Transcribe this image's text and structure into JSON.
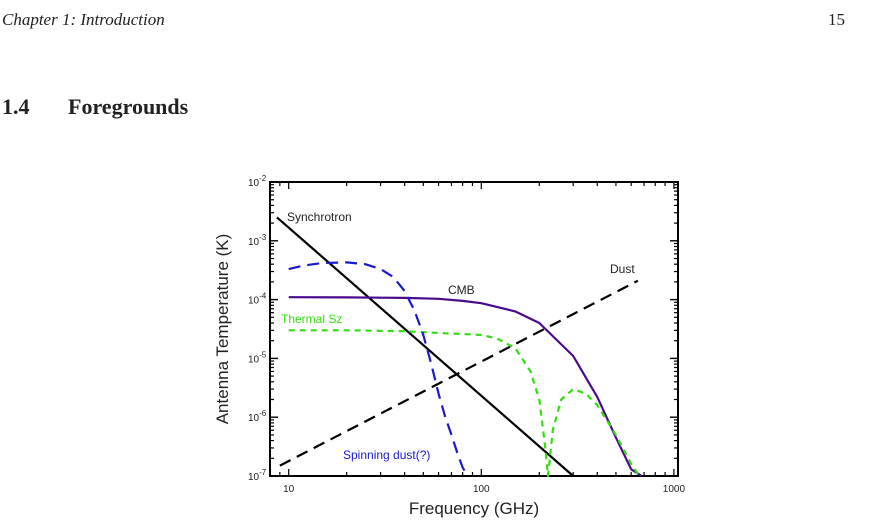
{
  "header": {
    "chapter_title": "Chapter 1: Introduction",
    "page_number": "15"
  },
  "section": {
    "number": "1.4",
    "title": "Foregrounds"
  },
  "chart_data": {
    "type": "line",
    "xlabel": "Frequency (GHz)",
    "ylabel": "Antenna Temperature (K)",
    "x_scale": "log",
    "y_scale": "log",
    "xlim": [
      8,
      1050
    ],
    "ylim": [
      1e-07,
      0.01
    ],
    "x_ticks": [
      {
        "value": 10,
        "label": "10"
      },
      {
        "value": 100,
        "label": "100"
      },
      {
        "value": 1000,
        "label": "1000"
      }
    ],
    "y_ticks": [
      {
        "value": 1e-07,
        "base": "10",
        "exp": "-7"
      },
      {
        "value": 1e-06,
        "base": "10",
        "exp": "-6"
      },
      {
        "value": 1e-05,
        "base": "10",
        "exp": "-5"
      },
      {
        "value": 0.0001,
        "base": "10",
        "exp": "-4"
      },
      {
        "value": 0.001,
        "base": "10",
        "exp": "-3"
      },
      {
        "value": 0.01,
        "base": "10",
        "exp": "-2"
      }
    ],
    "grid": false,
    "series": [
      {
        "name": "Synchrotron",
        "color": "#000000",
        "dash": "solid",
        "x": [
          8.7,
          300
        ],
        "y": [
          0.0025,
          1e-07
        ]
      },
      {
        "name": "CMB",
        "color": "#4b0a8c",
        "dash": "solid",
        "x": [
          10,
          20,
          40,
          60,
          80,
          100,
          150,
          200,
          300,
          400,
          500,
          600,
          680
        ],
        "y": [
          0.00011,
          0.000109,
          0.000107,
          0.000103,
          9.5e-05,
          8.7e-05,
          6.3e-05,
          4e-05,
          1.1e-05,
          2.2e-06,
          4.5e-07,
          1.3e-07,
          1e-07
        ]
      },
      {
        "name": "Dust",
        "color": "#000000",
        "dash": "long-dash",
        "x": [
          9,
          650
        ],
        "y": [
          1.5e-07,
          0.00021
        ]
      },
      {
        "name": "Thermal Sz",
        "color": "#33dd11",
        "dash": "short-dash",
        "x": [
          10,
          20,
          40,
          60,
          80,
          100,
          120,
          150,
          180,
          200,
          215,
          222,
          235,
          260,
          300,
          350,
          400,
          500,
          600,
          660
        ],
        "y": [
          3e-05,
          3e-05,
          2.9e-05,
          2.7e-05,
          2.6e-05,
          2.5e-05,
          2.2e-05,
          1.5e-05,
          6e-06,
          2e-06,
          3e-07,
          1e-07,
          6e-07,
          2e-06,
          3e-06,
          2.5e-06,
          1.6e-06,
          5e-07,
          1.6e-07,
          1e-07
        ]
      },
      {
        "name": "Spinning dust(?)",
        "color": "#1a1acc",
        "dash": "long-dash",
        "x": [
          10,
          12,
          15,
          20,
          25,
          30,
          35,
          40,
          45,
          50,
          55,
          60,
          65,
          70,
          75,
          80,
          85
        ],
        "y": [
          0.00033,
          0.00038,
          0.00042,
          0.00043,
          0.0004,
          0.00033,
          0.00024,
          0.00014,
          6.5e-05,
          2.5e-05,
          8e-06,
          2.5e-06,
          1e-06,
          5e-07,
          2.5e-07,
          1.4e-07,
          1e-07
        ]
      }
    ]
  }
}
